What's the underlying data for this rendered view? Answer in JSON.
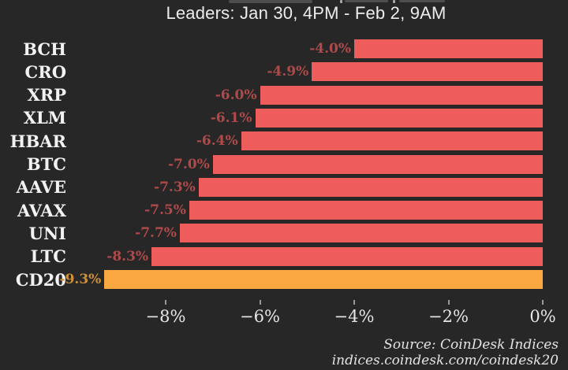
{
  "chart_data": {
    "type": "bar",
    "orientation": "horizontal",
    "title": "Leaders: Jan 30, 4PM - Feb 2, 9AM",
    "categories": [
      "BCH",
      "CRO",
      "XRP",
      "XLM",
      "HBAR",
      "BTC",
      "AAVE",
      "AVAX",
      "UNI",
      "LTC",
      "CD20"
    ],
    "values": [
      -4.0,
      -4.9,
      -6.0,
      -6.1,
      -6.4,
      -7.0,
      -7.3,
      -7.5,
      -7.7,
      -8.3,
      -9.3
    ],
    "value_labels": [
      "-4.0%",
      "-4.9%",
      "-6.0%",
      "-6.1%",
      "-6.4%",
      "-7.0%",
      "-7.3%",
      "-7.5%",
      "-7.7%",
      "-8.3%",
      "-9.3%"
    ],
    "highlight_category": "CD20",
    "colors": {
      "background": "#272727",
      "bar_default": "#ef5c5c",
      "bar_highlight": "#fba843",
      "value_label_default": "#b04a4a",
      "value_label_highlight": "#cd9038",
      "category_label": "#f2f2f2",
      "tick": "#9a9a9a",
      "tick_label": "#e6e6e6"
    },
    "x_axis": {
      "xlim": [
        -10,
        0
      ],
      "ticks": [
        {
          "value": -8,
          "label": "−8%"
        },
        {
          "value": -6,
          "label": "−6%"
        },
        {
          "value": -4,
          "label": "−4%"
        },
        {
          "value": -2,
          "label": "−2%"
        },
        {
          "value": 0,
          "label": "0%"
        }
      ],
      "grid": false
    },
    "legend": null,
    "source_line1": "Source: CoinDesk Indices",
    "source_line2": "indices.coindesk.com/coindesk20"
  }
}
